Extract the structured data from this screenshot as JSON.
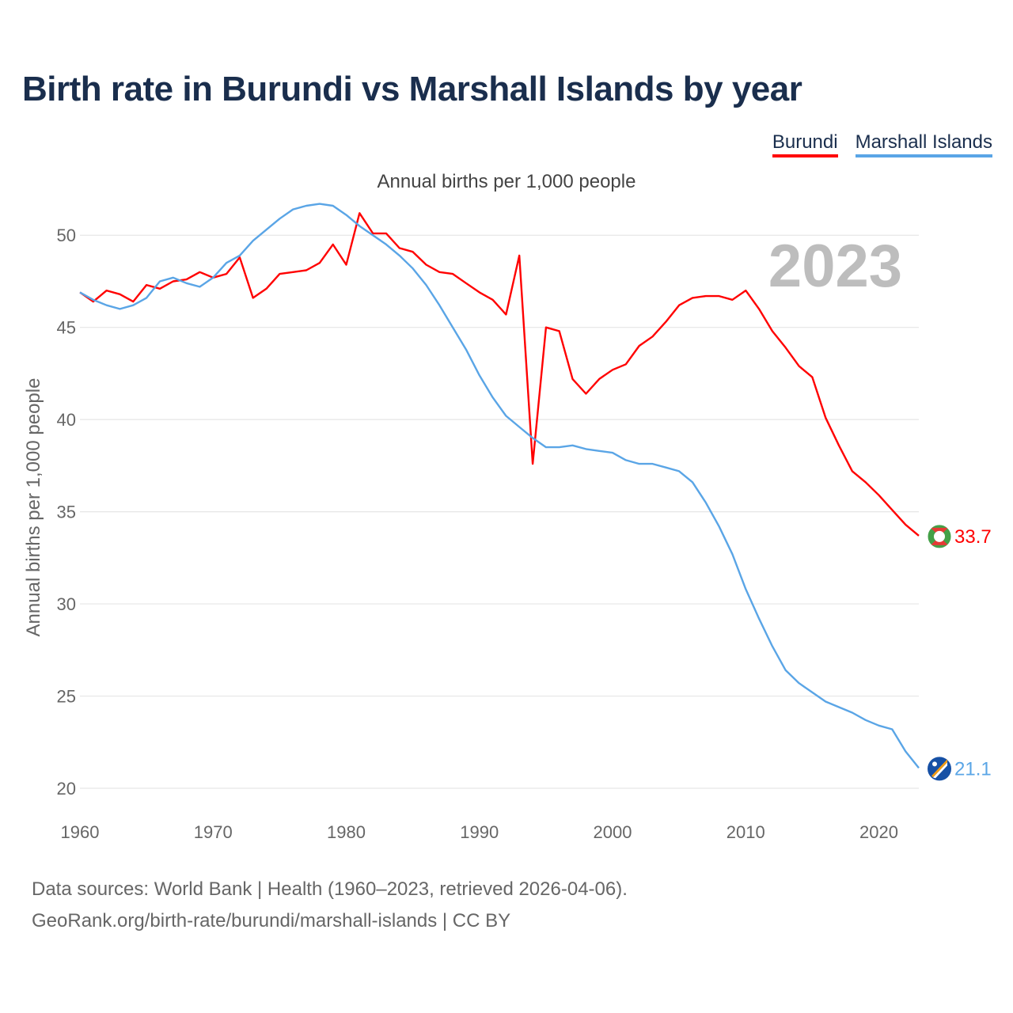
{
  "title": "Birth rate in Burundi vs Marshall Islands by year",
  "subtitle": "Annual births per 1,000 people",
  "year_overlay": "2023",
  "legend": [
    {
      "name": "Burundi",
      "color": "#ff0000"
    },
    {
      "name": "Marshall Islands",
      "color": "#5aa5e6"
    }
  ],
  "footer": {
    "line1": "Data sources: World Bank | Health (1960–2023, retrieved 2026-04-06).",
    "line2": "GeoRank.org/birth-rate/burundi/marshall-islands | CC BY"
  },
  "chart_data": {
    "type": "line",
    "title": "Birth rate in Burundi vs Marshall Islands by year",
    "xlabel": "",
    "ylabel": "Annual births per 1,000 people",
    "xlim": [
      1960,
      2023
    ],
    "ylim": [
      20,
      52.5
    ],
    "xticks": [
      1960,
      1970,
      1980,
      1990,
      2000,
      2010,
      2020
    ],
    "yticks": [
      20,
      25,
      30,
      35,
      40,
      45,
      50
    ],
    "grid": true,
    "legend_position": "top-right",
    "x": [
      1960,
      1961,
      1962,
      1963,
      1964,
      1965,
      1966,
      1967,
      1968,
      1969,
      1970,
      1971,
      1972,
      1973,
      1974,
      1975,
      1976,
      1977,
      1978,
      1979,
      1980,
      1981,
      1982,
      1983,
      1984,
      1985,
      1986,
      1987,
      1988,
      1989,
      1990,
      1991,
      1992,
      1993,
      1994,
      1995,
      1996,
      1997,
      1998,
      1999,
      2000,
      2001,
      2002,
      2003,
      2004,
      2005,
      2006,
      2007,
      2008,
      2009,
      2010,
      2011,
      2012,
      2013,
      2014,
      2015,
      2016,
      2017,
      2018,
      2019,
      2020,
      2021,
      2022,
      2023
    ],
    "series": [
      {
        "name": "Burundi",
        "color": "#ff0000",
        "end_label": "33.7",
        "values": [
          46.9,
          46.4,
          47.0,
          46.8,
          46.4,
          47.3,
          47.1,
          47.5,
          47.6,
          48.0,
          47.7,
          47.9,
          48.8,
          46.6,
          47.1,
          47.9,
          48.0,
          48.1,
          48.5,
          49.5,
          48.4,
          51.2,
          50.1,
          50.1,
          49.3,
          49.1,
          48.4,
          48.0,
          47.9,
          47.4,
          46.9,
          46.5,
          45.7,
          48.9,
          37.6,
          45.0,
          44.8,
          42.2,
          41.4,
          42.2,
          42.7,
          43.0,
          44.0,
          44.5,
          45.3,
          46.2,
          46.6,
          46.7,
          46.7,
          46.5,
          47.0,
          46.0,
          44.8,
          43.9,
          42.9,
          42.3,
          40.1,
          38.6,
          37.2,
          36.6,
          35.9,
          35.1,
          34.3,
          33.7
        ]
      },
      {
        "name": "Marshall Islands",
        "color": "#5aa5e6",
        "end_label": "21.1",
        "values": [
          46.9,
          46.5,
          46.2,
          46.0,
          46.2,
          46.6,
          47.5,
          47.7,
          47.4,
          47.2,
          47.7,
          48.5,
          48.9,
          49.7,
          50.3,
          50.9,
          51.4,
          51.6,
          51.7,
          51.6,
          51.1,
          50.5,
          50.0,
          49.5,
          48.9,
          48.2,
          47.3,
          46.2,
          45.0,
          43.8,
          42.4,
          41.2,
          40.2,
          39.6,
          39.0,
          38.5,
          38.5,
          38.6,
          38.4,
          38.3,
          38.2,
          37.8,
          37.6,
          37.6,
          37.4,
          37.2,
          36.6,
          35.5,
          34.2,
          32.7,
          30.8,
          29.2,
          27.7,
          26.4,
          25.7,
          25.2,
          24.7,
          24.4,
          24.1,
          23.7,
          23.4,
          23.2,
          22.0,
          21.1
        ]
      }
    ]
  }
}
